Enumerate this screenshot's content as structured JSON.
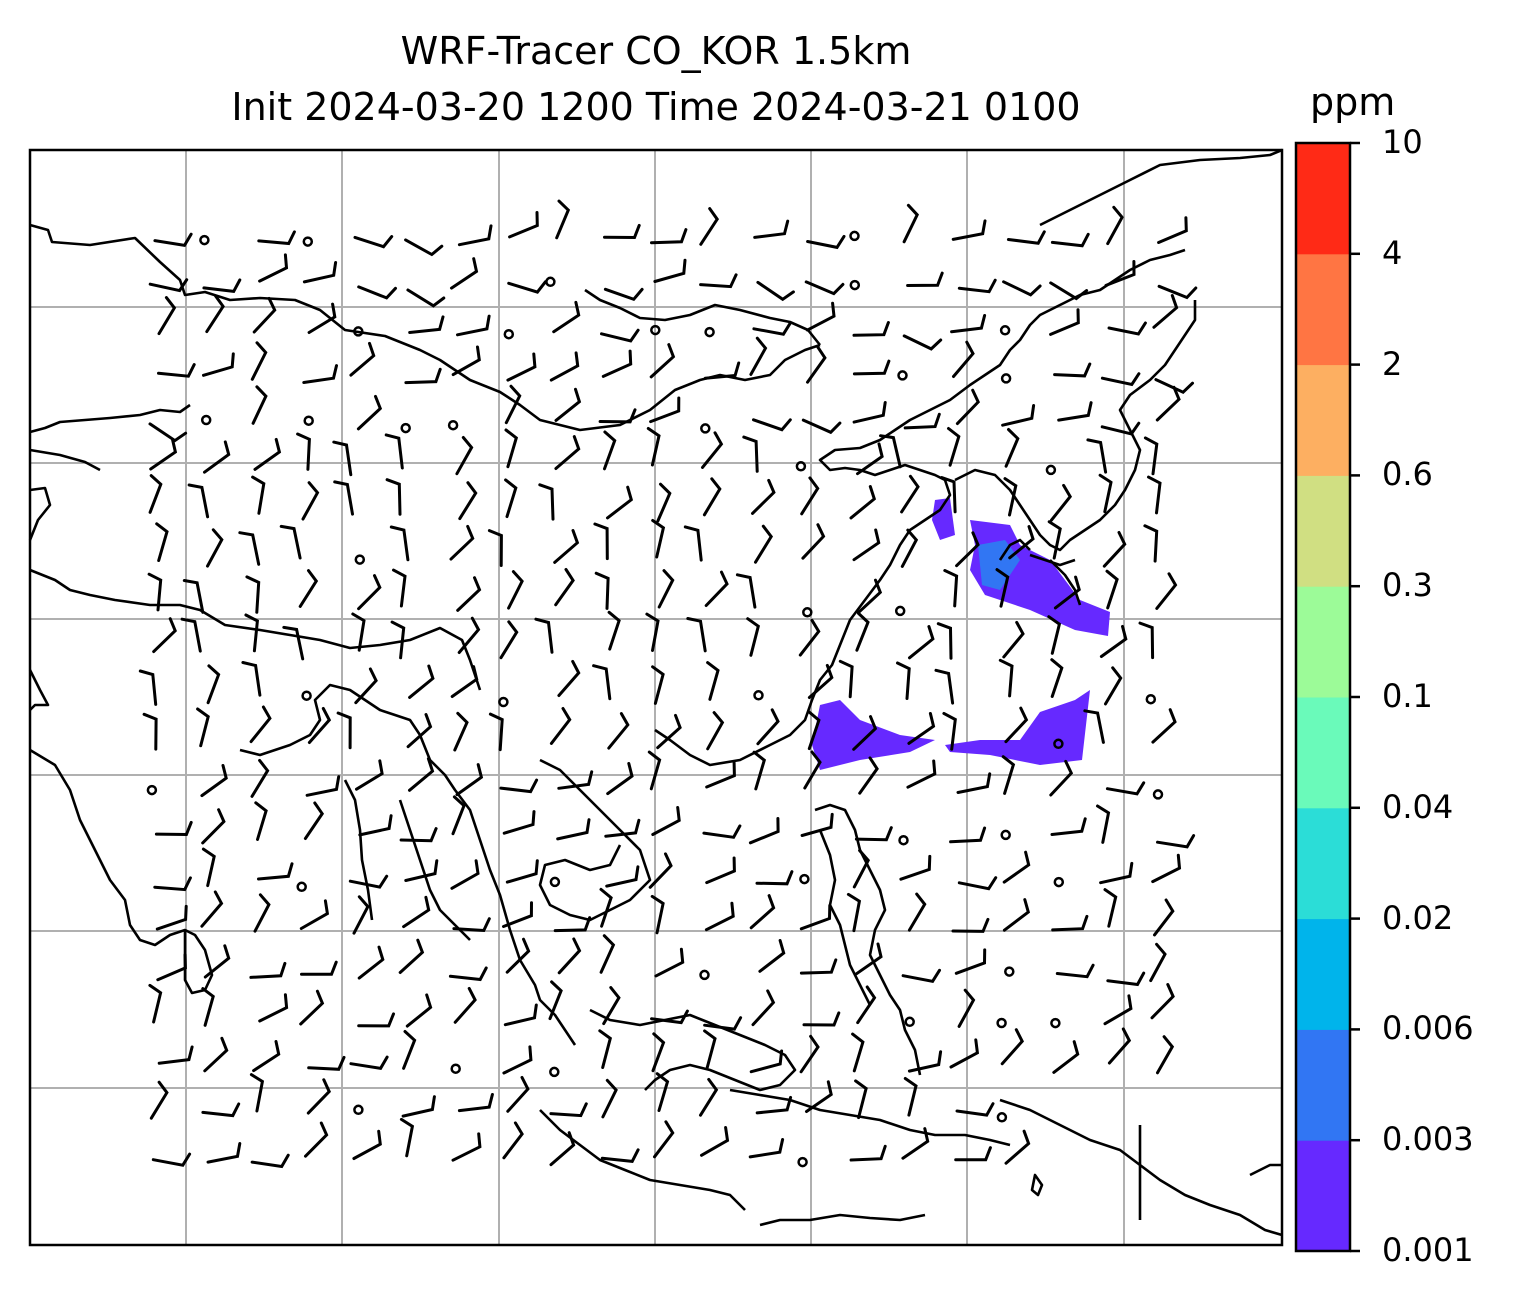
{
  "title_line1": "WRF-Tracer CO_KOR 1.5km",
  "title_line2": "Init 2024-03-20 1200 Time 2024-03-21 0100",
  "colorbar": {
    "unit": "ppm",
    "levels": [
      "0.001",
      "0.003",
      "0.006",
      "0.02",
      "0.04",
      "0.1",
      "0.3",
      "0.6",
      "2",
      "4",
      "10"
    ],
    "colors": [
      "#6629FF",
      "#3176F3",
      "#00B4EB",
      "#2BDDD7",
      "#6AFABA",
      "#9CFB98",
      "#D0DF82",
      "#FDAF61",
      "#FF7543",
      "#FF2A16"
    ]
  },
  "tracer_color": "#6629FF",
  "tracer_edge_color": "#3176F3",
  "map_style": {
    "coastline_color": "#000000",
    "gridline_color": "#b0b0b0",
    "wind_barbs": true,
    "calm_marker": "circle"
  }
}
